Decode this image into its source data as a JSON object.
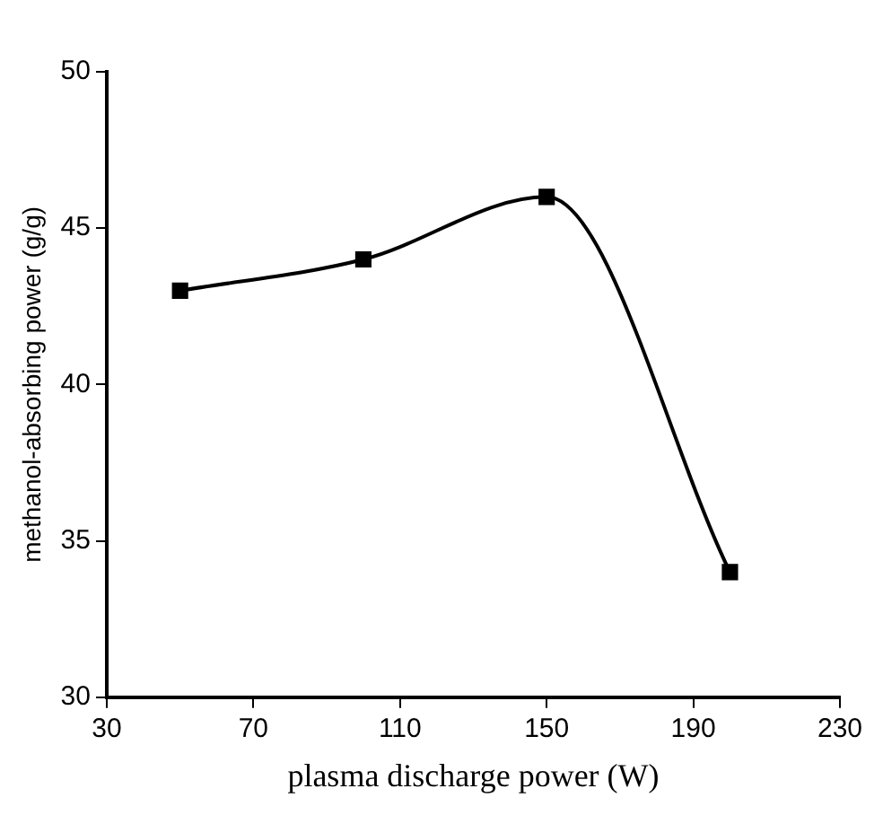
{
  "chart_data": {
    "type": "line",
    "xlabel": "plasma discharge power (W)",
    "ylabel": "methanol-absorbing power (g/g)",
    "x": [
      50,
      100,
      150,
      200
    ],
    "series": [
      {
        "color": "#000000",
        "values": [
          43,
          44,
          46,
          34
        ]
      }
    ],
    "xlim": [
      30,
      230
    ],
    "xticks": [
      30,
      70,
      110,
      150,
      190,
      230
    ],
    "ylim": [
      30,
      50
    ],
    "yticks": [
      30,
      35,
      40,
      45,
      50
    ],
    "grid": false,
    "legend": false,
    "marker": "square",
    "line_style": "solid"
  }
}
